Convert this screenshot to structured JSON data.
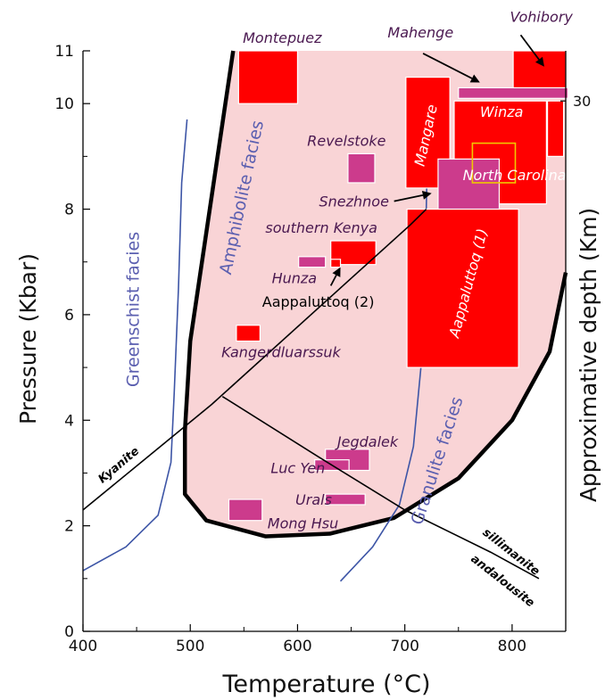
{
  "chart_data": {
    "type": "scatter",
    "xlabel": "Temperature (°C)",
    "ylabel": "Pressure (Kbar)",
    "y2label": "Approximative depth (Km)",
    "xlim": [
      400,
      850
    ],
    "ylim": [
      0,
      11
    ],
    "x_ticks": [
      400,
      500,
      600,
      700,
      800
    ],
    "y_ticks": [
      0,
      2,
      4,
      6,
      8,
      10,
      11
    ],
    "y2_ticks": [
      {
        "y": 10.05,
        "label": "30"
      }
    ],
    "grid": false,
    "colors": {
      "field_fill": "#f9d4d6",
      "red_box": "#ff0000",
      "magenta_box": "#cc3b8c",
      "facies_line": "#3d55a6",
      "label_purple": "#4a1850",
      "facies_label": "#5b5fb0",
      "highlight": "#f0c800"
    },
    "field_boundary": [
      [
        540,
        11
      ],
      [
        500,
        5.5
      ],
      [
        495,
        3.8
      ],
      [
        495,
        2.6
      ],
      [
        515,
        2.1
      ],
      [
        570,
        1.8
      ],
      [
        630,
        1.85
      ],
      [
        690,
        2.15
      ],
      [
        750,
        2.9
      ],
      [
        800,
        4
      ],
      [
        835,
        5.3
      ],
      [
        850,
        6.8
      ]
    ],
    "reaction_lines": [
      {
        "name": "kyanite-sillimanite",
        "points": [
          [
            400,
            2.3
          ],
          [
            520,
            4.3
          ],
          [
            705,
            7.7
          ],
          [
            720,
            8.0
          ]
        ]
      },
      {
        "name": "sillimanite-andalusite",
        "points": [
          [
            530,
            4.45
          ],
          [
            620,
            3.3
          ],
          [
            700,
            2.3
          ],
          [
            780,
            1.5
          ],
          [
            825,
            1.0
          ]
        ]
      }
    ],
    "facies_lines": [
      {
        "name": "greenschist",
        "points": [
          [
            400,
            1.15
          ],
          [
            440,
            1.6
          ],
          [
            470,
            2.2
          ],
          [
            482,
            3.2
          ],
          [
            485,
            4.5
          ],
          [
            489,
            6.5
          ],
          [
            492,
            8.5
          ],
          [
            497,
            9.7
          ]
        ]
      },
      {
        "name": "granulite",
        "points": [
          [
            640,
            0.95
          ],
          [
            670,
            1.6
          ],
          [
            695,
            2.4
          ],
          [
            708,
            3.5
          ],
          [
            715,
            5.0
          ],
          [
            718,
            6.6
          ],
          [
            720,
            8.0
          ],
          [
            722,
            10.1
          ]
        ]
      }
    ],
    "reaction_labels": [
      {
        "text": "Kyanite",
        "x": 418,
        "y": 2.8,
        "angle": -40
      },
      {
        "text": "sillimanite",
        "x": 772,
        "y": 1.85,
        "angle": 38
      },
      {
        "text": "andalousite",
        "x": 761,
        "y": 1.35,
        "angle": 38
      }
    ],
    "facies_labels": [
      {
        "text": "Greenschist facies",
        "x": 452,
        "y": 6.1,
        "angle": -90
      },
      {
        "text": "Amphibolite facies",
        "x": 553,
        "y": 8.2,
        "angle": -78
      },
      {
        "text": "Granulite facies",
        "x": 735,
        "y": 3.2,
        "angle": -72
      }
    ],
    "deposits": [
      {
        "name": "Montepuez",
        "x0": 545,
        "x1": 600,
        "y0": 10.0,
        "y1": 11.0,
        "color": "red"
      },
      {
        "name": "Vohibory",
        "x0": 801,
        "x1": 850,
        "y0": 10.2,
        "y1": 11.0,
        "color": "red"
      },
      {
        "name": "Mahenge",
        "x0": 750,
        "x1": 852,
        "y0": 10.1,
        "y1": 10.3,
        "color": "magenta"
      },
      {
        "name": "Mangare",
        "x0": 701,
        "x1": 742,
        "y0": 8.4,
        "y1": 10.5,
        "color": "red"
      },
      {
        "name": "Winza",
        "x0": 746,
        "x1": 832,
        "y0": 8.1,
        "y1": 10.05,
        "color": "red"
      },
      {
        "name": "Winza-edge",
        "x0": 833,
        "x1": 848,
        "y0": 9.0,
        "y1": 10.05,
        "color": "red"
      },
      {
        "name": "North Carolina",
        "x0": 731,
        "x1": 788,
        "y0": 8.0,
        "y1": 8.95,
        "color": "magenta"
      },
      {
        "name": "North Carolina highlight",
        "x0": 763,
        "x1": 803,
        "y0": 8.5,
        "y1": 9.25,
        "color": "highlight"
      },
      {
        "name": "Revelstoke",
        "x0": 647,
        "x1": 672,
        "y0": 8.5,
        "y1": 9.05,
        "color": "magenta"
      },
      {
        "name": "Aappaluttoq (1)",
        "x0": 702,
        "x1": 806,
        "y0": 5.0,
        "y1": 8.0,
        "color": "red"
      },
      {
        "name": "southern Kenya",
        "x0": 631,
        "x1": 673,
        "y0": 6.95,
        "y1": 7.4,
        "color": "red"
      },
      {
        "name": "Hunza",
        "x0": 601,
        "x1": 626,
        "y0": 6.9,
        "y1": 7.1,
        "color": "magenta"
      },
      {
        "name": "Aappaluttoq (2)",
        "x0": 631,
        "x1": 640,
        "y0": 6.9,
        "y1": 7.05,
        "color": "red"
      },
      {
        "name": "Kangerdluarssuk",
        "x0": 543,
        "x1": 565,
        "y0": 5.5,
        "y1": 5.8,
        "color": "red"
      },
      {
        "name": "Jegdalek",
        "x0": 626,
        "x1": 667,
        "y0": 3.05,
        "y1": 3.45,
        "color": "magenta"
      },
      {
        "name": "Luc Yen",
        "x0": 616,
        "x1": 648,
        "y0": 3.05,
        "y1": 3.25,
        "color": "magenta"
      },
      {
        "name": "Urals",
        "x0": 626,
        "x1": 663,
        "y0": 2.4,
        "y1": 2.6,
        "color": "magenta"
      },
      {
        "name": "Mong Hsu",
        "x0": 536,
        "x1": 567,
        "y0": 2.1,
        "y1": 2.5,
        "color": "magenta"
      }
    ],
    "annotations": [
      {
        "text": "Montepuez",
        "x": 549,
        "y": 11.15,
        "color": "purple",
        "angle": 0
      },
      {
        "text": "Vohibory",
        "x": 798,
        "y": 11.55,
        "color": "purple",
        "angle": 0
      },
      {
        "text": "Mahenge",
        "x": 684,
        "y": 11.25,
        "color": "purple",
        "angle": 0
      },
      {
        "text": "Mangare",
        "x": 718,
        "y": 8.8,
        "color": "white",
        "angle": -78
      },
      {
        "text": "Winza",
        "x": 770,
        "y": 9.75,
        "color": "white",
        "angle": 0
      },
      {
        "text": "North Carolina",
        "x": 754,
        "y": 8.55,
        "color": "white",
        "angle": 0
      },
      {
        "text": "Revelstoke",
        "x": 609,
        "y": 9.2,
        "color": "purple",
        "angle": 0
      },
      {
        "text": "Snezhnoe",
        "x": 620,
        "y": 8.05,
        "color": "purple",
        "angle": 0
      },
      {
        "text": "southern Kenya",
        "x": 570,
        "y": 7.55,
        "color": "purple",
        "angle": 0
      },
      {
        "text": "Hunza",
        "x": 576,
        "y": 6.6,
        "color": "purple",
        "angle": 0
      },
      {
        "text": "Aappaluttoq (2)",
        "x": 567,
        "y": 6.15,
        "color": "black",
        "angle": 0
      },
      {
        "text": "Aappaluttoq (1)",
        "x": 750,
        "y": 5.55,
        "color": "white",
        "angle": -75
      },
      {
        "text": "Kangerdluarssuk",
        "x": 529,
        "y": 5.2,
        "color": "purple",
        "angle": 0
      },
      {
        "text": "Jegdalek",
        "x": 637,
        "y": 3.5,
        "color": "purple",
        "angle": 0
      },
      {
        "text": "Luc Yen",
        "x": 575,
        "y": 3.0,
        "color": "purple",
        "angle": 0
      },
      {
        "text": "Urals",
        "x": 598,
        "y": 2.4,
        "color": "purple",
        "angle": 0
      },
      {
        "text": "Mong Hsu",
        "x": 572,
        "y": 1.95,
        "color": "purple",
        "angle": 0
      }
    ],
    "arrows": [
      {
        "name": "Vohibory",
        "from": [
          808,
          11.3
        ],
        "to": [
          830,
          10.7
        ]
      },
      {
        "name": "Mahenge",
        "from": [
          717,
          10.95
        ],
        "to": [
          770,
          10.4
        ]
      },
      {
        "name": "Snezhnoe",
        "from": [
          690,
          8.15
        ],
        "to": [
          725,
          8.3
        ]
      },
      {
        "name": "Aappaluttoq (2)",
        "from": [
          631,
          6.55
        ],
        "to": [
          640,
          6.9
        ]
      }
    ]
  }
}
